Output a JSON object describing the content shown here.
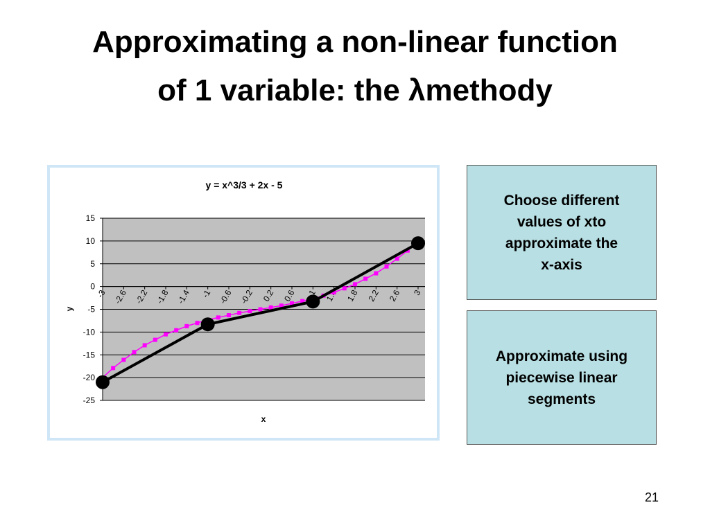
{
  "title": [
    "Approximating a non-linear function",
    "of 1 variable: the λmethody"
  ],
  "chart_data": {
    "type": "line",
    "title": "y = x^3/3 + 2x - 5",
    "x_label": "x",
    "y_label": "y",
    "x": [
      -3,
      -2.8,
      -2.6,
      -2.4,
      -2.2,
      -2,
      -1.8,
      -1.6,
      -1.4,
      -1.2,
      -1,
      -0.8,
      -0.6,
      -0.4,
      -0.2,
      0,
      0.2,
      0.4,
      0.6,
      0.8,
      1,
      1.2,
      1.4,
      1.6,
      1.8,
      2,
      2.2,
      2.4,
      2.6,
      2.8,
      3
    ],
    "xlim": [
      -3,
      3
    ],
    "xticks": [
      -3,
      -2.6,
      -2.2,
      -1.8,
      -1.4,
      -1,
      -0.6,
      -0.2,
      0.2,
      0.6,
      1,
      1.4,
      1.8,
      2.2,
      2.6,
      3
    ],
    "ylim": [
      -25,
      15
    ],
    "yticks": [
      -25,
      -20,
      -15,
      -10,
      -5,
      0,
      5,
      10,
      15
    ],
    "grid": true,
    "series": [
      {
        "color": "#ff00ff",
        "marker": "square",
        "values": [
          -20,
          -17.9,
          -16.1,
          -14.4,
          -12.9,
          -11.7,
          -10.5,
          -9.6,
          -8.7,
          -8,
          -7.3,
          -6.8,
          -6.3,
          -5.8,
          -5.4,
          -5,
          -4.6,
          -4.2,
          -3.7,
          -3.2,
          -2.7,
          -2,
          -1.3,
          -0.4,
          0.5,
          1.7,
          2.9,
          4.4,
          6.1,
          7.9,
          10
        ]
      },
      {
        "color": "#000000",
        "marker": "circle",
        "x": [
          -3,
          -1,
          1,
          3
        ],
        "values": [
          -21,
          -8.3,
          -3.3,
          9.5
        ]
      }
    ]
  },
  "boxes": [
    [
      "Choose different",
      "values of xto",
      "approximate the",
      "x-axis"
    ],
    [
      "Approximate using",
      "piecewise linear",
      "segments"
    ]
  ],
  "page_number": "21"
}
